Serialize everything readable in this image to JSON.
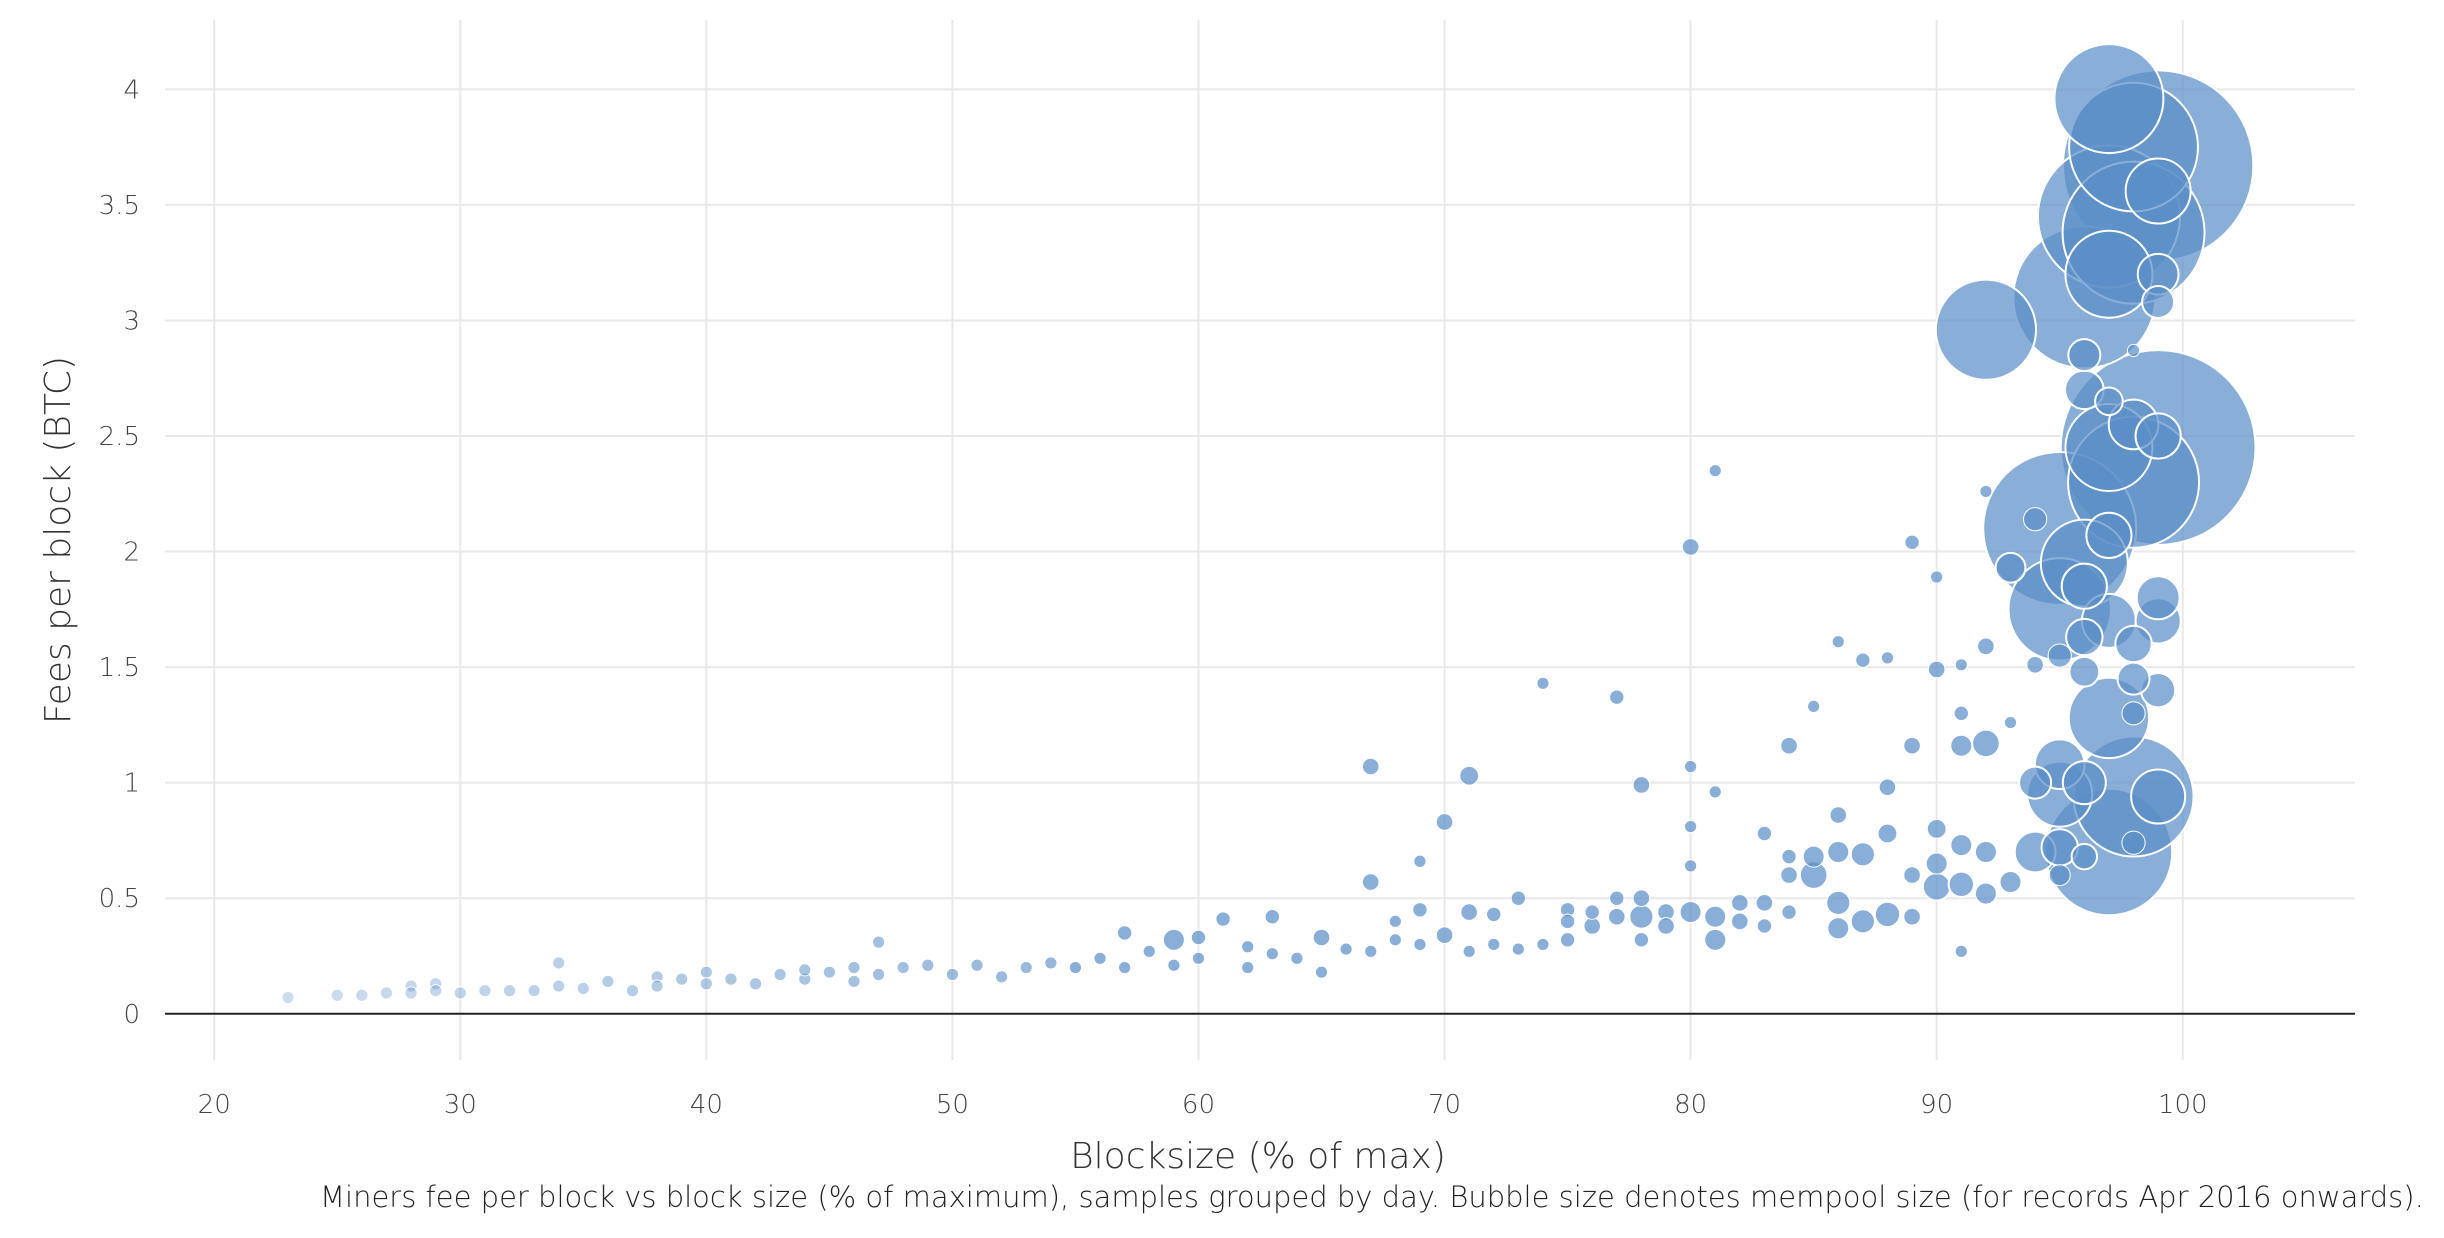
{
  "chart_data": {
    "type": "scatter",
    "title": "",
    "xlabel": "Blocksize (% of max)",
    "ylabel": "Fees per block (BTC)",
    "xlim": [
      18,
      107
    ],
    "ylim": [
      -0.2,
      4.3
    ],
    "xticks": [
      "20",
      "30",
      "40",
      "50",
      "60",
      "70",
      "80",
      "90",
      "100"
    ],
    "yticks": [
      "0",
      "0.5",
      "1",
      "1.5",
      "2",
      "2.5",
      "3",
      "3.5",
      "4"
    ],
    "grid": true,
    "legend": "none",
    "colors": {
      "bubble": "#5b8fc7",
      "grid": "#e8e8e8",
      "zero_line": "#222222"
    },
    "size_encoding": "mempool size",
    "points": [
      [
        23,
        0.07,
        0.1
      ],
      [
        25,
        0.08,
        0.1
      ],
      [
        26,
        0.08,
        0.1
      ],
      [
        27,
        0.09,
        0.1
      ],
      [
        28,
        0.12,
        0.1
      ],
      [
        28,
        0.09,
        0.1
      ],
      [
        29,
        0.13,
        0.1
      ],
      [
        29,
        0.1,
        0.1
      ],
      [
        30,
        0.09,
        0.1
      ],
      [
        31,
        0.1,
        0.1
      ],
      [
        32,
        0.1,
        0.1
      ],
      [
        33,
        0.1,
        0.1
      ],
      [
        34,
        0.12,
        0.1
      ],
      [
        34,
        0.22,
        0.1
      ],
      [
        35,
        0.11,
        0.1
      ],
      [
        36,
        0.14,
        0.1
      ],
      [
        37,
        0.1,
        0.1
      ],
      [
        38,
        0.16,
        0.1
      ],
      [
        38,
        0.12,
        0.1
      ],
      [
        39,
        0.15,
        0.1
      ],
      [
        40,
        0.18,
        0.1
      ],
      [
        40,
        0.13,
        0.1
      ],
      [
        41,
        0.15,
        0.1
      ],
      [
        42,
        0.13,
        0.1
      ],
      [
        43,
        0.17,
        0.1
      ],
      [
        44,
        0.15,
        0.1
      ],
      [
        44,
        0.19,
        0.1
      ],
      [
        45,
        0.18,
        0.1
      ],
      [
        46,
        0.2,
        0.1
      ],
      [
        46,
        0.14,
        0.1
      ],
      [
        47,
        0.31,
        0.1
      ],
      [
        47,
        0.17,
        0.1
      ],
      [
        48,
        0.2,
        0.1
      ],
      [
        49,
        0.21,
        0.1
      ],
      [
        50,
        0.17,
        0.1
      ],
      [
        51,
        0.21,
        0.1
      ],
      [
        52,
        0.16,
        0.1
      ],
      [
        53,
        0.2,
        0.1
      ],
      [
        54,
        0.22,
        0.1
      ],
      [
        55,
        0.2,
        0.1
      ],
      [
        56,
        0.24,
        0.1
      ],
      [
        57,
        0.2,
        0.1
      ],
      [
        57,
        0.35,
        0.2
      ],
      [
        58,
        0.27,
        0.1
      ],
      [
        59,
        0.32,
        0.5
      ],
      [
        59,
        0.21,
        0.1
      ],
      [
        60,
        0.33,
        0.2
      ],
      [
        60,
        0.24,
        0.1
      ],
      [
        61,
        0.41,
        0.2
      ],
      [
        62,
        0.29,
        0.1
      ],
      [
        62,
        0.2,
        0.1
      ],
      [
        63,
        0.42,
        0.2
      ],
      [
        63,
        0.26,
        0.1
      ],
      [
        64,
        0.24,
        0.1
      ],
      [
        65,
        0.33,
        0.3
      ],
      [
        65,
        0.18,
        0.1
      ],
      [
        66,
        0.28,
        0.1
      ],
      [
        67,
        0.57,
        0.3
      ],
      [
        67,
        1.07,
        0.3
      ],
      [
        67,
        0.27,
        0.1
      ],
      [
        68,
        0.32,
        0.1
      ],
      [
        68,
        0.4,
        0.1
      ],
      [
        69,
        0.45,
        0.2
      ],
      [
        69,
        0.66,
        0.1
      ],
      [
        69,
        0.3,
        0.1
      ],
      [
        70,
        0.34,
        0.3
      ],
      [
        70,
        0.83,
        0.3
      ],
      [
        71,
        0.44,
        0.3
      ],
      [
        71,
        1.03,
        0.4
      ],
      [
        71,
        0.27,
        0.1
      ],
      [
        72,
        0.43,
        0.2
      ],
      [
        72,
        0.3,
        0.1
      ],
      [
        73,
        0.5,
        0.2
      ],
      [
        73,
        0.28,
        0.1
      ],
      [
        74,
        1.43,
        0.1
      ],
      [
        74,
        0.3,
        0.1
      ],
      [
        75,
        0.45,
        0.2
      ],
      [
        75,
        0.4,
        0.2
      ],
      [
        75,
        0.32,
        0.2
      ],
      [
        76,
        0.38,
        0.3
      ],
      [
        76,
        0.44,
        0.2
      ],
      [
        77,
        1.37,
        0.2
      ],
      [
        77,
        0.42,
        0.3
      ],
      [
        77,
        0.5,
        0.2
      ],
      [
        78,
        0.42,
        0.6
      ],
      [
        78,
        0.5,
        0.3
      ],
      [
        78,
        0.99,
        0.3
      ],
      [
        78,
        0.32,
        0.2
      ],
      [
        79,
        0.44,
        0.3
      ],
      [
        79,
        0.38,
        0.3
      ],
      [
        80,
        2.02,
        0.3
      ],
      [
        80,
        1.07,
        0.1
      ],
      [
        80,
        0.44,
        0.5
      ],
      [
        80,
        0.81,
        0.1
      ],
      [
        80,
        0.64,
        0.1
      ],
      [
        81,
        2.35,
        0.1
      ],
      [
        81,
        0.96,
        0.1
      ],
      [
        81,
        0.42,
        0.5
      ],
      [
        81,
        0.32,
        0.5
      ],
      [
        82,
        0.4,
        0.3
      ],
      [
        82,
        0.48,
        0.3
      ],
      [
        83,
        0.78,
        0.2
      ],
      [
        83,
        0.48,
        0.3
      ],
      [
        83,
        0.38,
        0.2
      ],
      [
        84,
        1.16,
        0.3
      ],
      [
        84,
        0.68,
        0.2
      ],
      [
        84,
        0.6,
        0.3
      ],
      [
        84,
        0.44,
        0.2
      ],
      [
        85,
        1.33,
        0.1
      ],
      [
        85,
        0.6,
        0.8
      ],
      [
        85,
        0.68,
        0.5
      ],
      [
        86,
        1.61,
        0.1
      ],
      [
        86,
        0.86,
        0.3
      ],
      [
        86,
        0.7,
        0.5
      ],
      [
        86,
        0.48,
        0.6
      ],
      [
        86,
        0.37,
        0.5
      ],
      [
        87,
        1.53,
        0.2
      ],
      [
        87,
        0.69,
        0.6
      ],
      [
        87,
        0.4,
        0.6
      ],
      [
        88,
        1.54,
        0.1
      ],
      [
        88,
        0.98,
        0.3
      ],
      [
        88,
        0.78,
        0.4
      ],
      [
        88,
        0.43,
        0.7
      ],
      [
        89,
        2.04,
        0.2
      ],
      [
        89,
        1.16,
        0.3
      ],
      [
        89,
        0.6,
        0.3
      ],
      [
        89,
        0.42,
        0.3
      ],
      [
        90,
        1.89,
        0.1
      ],
      [
        90,
        1.49,
        0.3
      ],
      [
        90,
        0.8,
        0.4
      ],
      [
        90,
        0.65,
        0.5
      ],
      [
        90,
        0.55,
        0.8
      ],
      [
        91,
        1.51,
        0.1
      ],
      [
        91,
        1.3,
        0.2
      ],
      [
        91,
        1.16,
        0.5
      ],
      [
        91,
        0.73,
        0.5
      ],
      [
        91,
        0.56,
        0.7
      ],
      [
        91,
        0.27,
        0.1
      ],
      [
        92,
        2.96,
        4.1
      ],
      [
        92,
        2.26,
        0.1
      ],
      [
        92,
        1.59,
        0.3
      ],
      [
        92,
        1.17,
        0.8
      ],
      [
        92,
        0.7,
        0.5
      ],
      [
        92,
        0.52,
        0.5
      ],
      [
        93,
        1.93,
        0.9
      ],
      [
        93,
        1.26,
        0.1
      ],
      [
        93,
        0.57,
        0.5
      ],
      [
        94,
        2.14,
        0.6
      ],
      [
        94,
        1.51,
        0.3
      ],
      [
        94,
        1.0,
        1.0
      ],
      [
        94,
        0.7,
        1.4
      ],
      [
        95,
        2.1,
        6.5
      ],
      [
        95,
        1.75,
        4.2
      ],
      [
        95,
        1.55,
        0.6
      ],
      [
        95,
        1.08,
        1.8
      ],
      [
        95,
        0.95,
        2.5
      ],
      [
        95,
        0.72,
        1.2
      ],
      [
        95,
        0.6,
        0.5
      ],
      [
        96,
        3.1,
        6.0
      ],
      [
        96,
        2.85,
        1.0
      ],
      [
        96,
        2.7,
        1.3
      ],
      [
        96,
        1.95,
        3.5
      ],
      [
        96,
        1.85,
        1.6
      ],
      [
        96,
        1.63,
        1.2
      ],
      [
        96,
        1.48,
        0.9
      ],
      [
        96,
        1.0,
        1.5
      ],
      [
        96,
        0.68,
        0.7
      ],
      [
        97,
        3.96,
        4.5
      ],
      [
        97,
        3.45,
        6.0
      ],
      [
        97,
        3.2,
        3.5
      ],
      [
        97,
        2.65,
        0.8
      ],
      [
        97,
        2.45,
        3.5
      ],
      [
        97,
        2.07,
        1.6
      ],
      [
        97,
        1.7,
        2.0
      ],
      [
        97,
        1.28,
        3.2
      ],
      [
        97,
        0.7,
        5.3
      ],
      [
        98,
        3.75,
        5.4
      ],
      [
        98,
        3.38,
        6.0
      ],
      [
        98,
        2.87,
        0.1
      ],
      [
        98,
        2.55,
        1.8
      ],
      [
        98,
        2.3,
        5.5
      ],
      [
        98,
        1.6,
        1.2
      ],
      [
        98,
        1.45,
        1.0
      ],
      [
        98,
        1.3,
        0.6
      ],
      [
        98,
        0.94,
        5.0
      ],
      [
        98,
        0.74,
        0.6
      ],
      [
        99,
        3.67,
        8.2
      ],
      [
        99,
        3.56,
        2.5
      ],
      [
        99,
        3.2,
        1.4
      ],
      [
        99,
        3.08,
        1.0
      ],
      [
        99,
        2.45,
        8.4
      ],
      [
        99,
        2.5,
        1.6
      ],
      [
        99,
        1.8,
        1.5
      ],
      [
        99,
        1.7,
        1.6
      ],
      [
        99,
        1.4,
        1.1
      ],
      [
        99,
        0.94,
        2.0
      ]
    ]
  },
  "caption": "Miners fee per block vs block size (% of maximum), samples grouped by day. Bubble size denotes mempool size (for records Apr 2016 onwards)."
}
